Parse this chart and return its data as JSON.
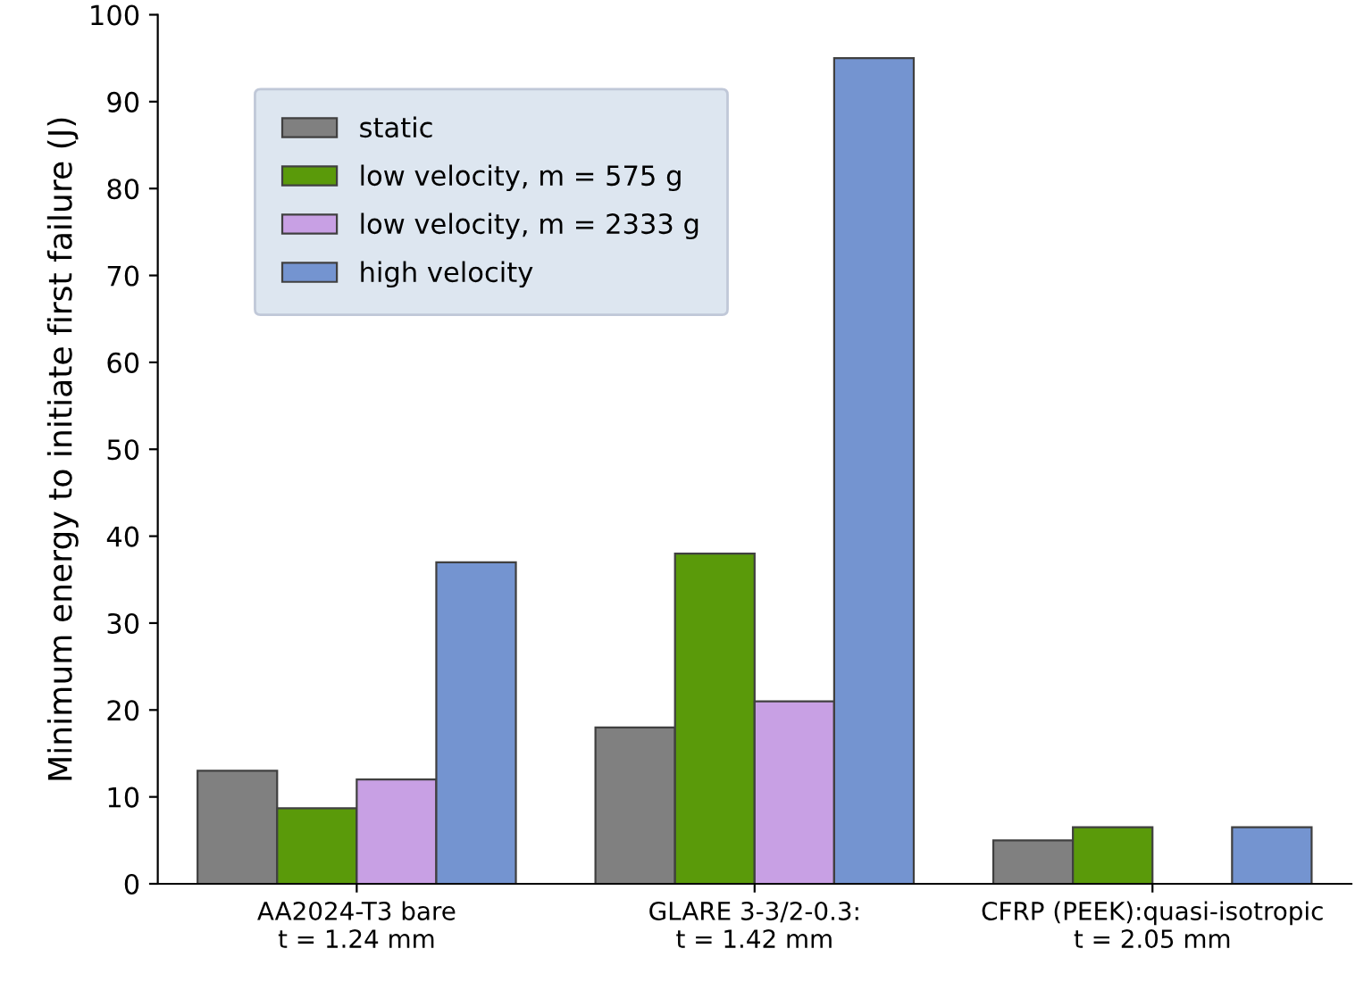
{
  "chart_data": {
    "type": "bar",
    "ylabel": "Minimum energy to initiate first failure (J)",
    "categories": [
      "AA2024-T3 bare\nt = 1.24 mm",
      "GLARE 3-3/2-0.3:\nt = 1.42 mm",
      "CFRP (PEEK):quasi-isotropic\nt = 2.05 mm"
    ],
    "series": [
      {
        "name": "static",
        "color": "#808080",
        "values": [
          13,
          18,
          5
        ]
      },
      {
        "name": "low velocity, m = 575 g",
        "color": "#5a9a0a",
        "values": [
          8.7,
          38,
          6.5
        ]
      },
      {
        "name": "low velocity, m = 2333 g",
        "color": "#c8a0e4",
        "values": [
          12,
          21,
          null
        ]
      },
      {
        "name": "high velocity",
        "color": "#7494d0",
        "values": [
          37,
          95,
          6.5
        ]
      }
    ],
    "ylim": [
      0,
      100
    ],
    "yticks": [
      0,
      10,
      20,
      30,
      40,
      50,
      60,
      70,
      80,
      90,
      100
    ],
    "grid": false,
    "legend": "top left"
  }
}
